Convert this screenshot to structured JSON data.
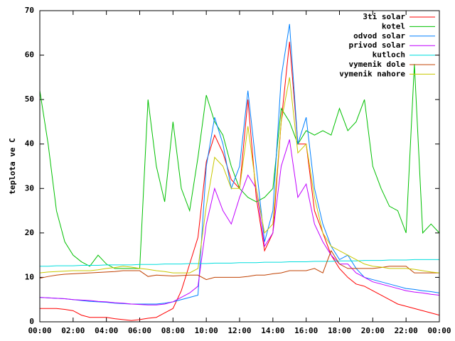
{
  "chart_data": {
    "type": "line",
    "ylabel": "teplota ve C",
    "x": [
      0,
      0.5,
      1,
      1.5,
      2,
      2.5,
      3,
      3.5,
      4,
      4.5,
      5,
      5.5,
      6,
      6.5,
      7,
      7.5,
      8,
      8.5,
      9,
      9.5,
      10,
      10.5,
      11,
      11.5,
      12,
      12.5,
      13,
      13.5,
      14,
      14.5,
      15,
      15.5,
      16,
      16.5,
      17,
      17.5,
      18,
      18.5,
      19,
      19.5,
      20,
      20.5,
      21,
      21.5,
      22,
      22.5,
      23,
      23.5,
      24
    ],
    "xlim": [
      0,
      24
    ],
    "xticks": [
      {
        "value": 0,
        "label": "00:00"
      },
      {
        "value": 2,
        "label": "02:00"
      },
      {
        "value": 4,
        "label": "04:00"
      },
      {
        "value": 6,
        "label": "06:00"
      },
      {
        "value": 8,
        "label": "08:00"
      },
      {
        "value": 10,
        "label": "10:00"
      },
      {
        "value": 12,
        "label": "12:00"
      },
      {
        "value": 14,
        "label": "14:00"
      },
      {
        "value": 16,
        "label": "16:00"
      },
      {
        "value": 18,
        "label": "18:00"
      },
      {
        "value": 20,
        "label": "20:00"
      },
      {
        "value": 22,
        "label": "22:00"
      },
      {
        "value": 24,
        "label": "00:00"
      }
    ],
    "ylim": [
      0,
      70
    ],
    "yticks": [
      0,
      10,
      20,
      30,
      40,
      50,
      60,
      70
    ],
    "legend": "upper right",
    "series": [
      {
        "name": "3ti solar",
        "color": "#ff0000",
        "values": [
          3,
          3,
          3,
          2.8,
          2.5,
          1.5,
          1,
          1,
          1,
          0.7,
          0.5,
          0.3,
          0.5,
          0.8,
          1,
          2,
          3,
          7,
          13,
          19,
          36,
          42,
          38,
          32,
          30,
          50,
          28,
          16,
          20,
          45,
          63,
          40,
          40,
          25,
          20,
          15,
          12,
          10,
          8.5,
          8,
          7,
          6,
          5,
          4,
          3.5,
          3,
          2.5,
          2,
          1.5
        ]
      },
      {
        "name": "kotel",
        "color": "#00c000",
        "values": [
          52,
          40,
          25,
          18,
          15,
          13.5,
          12.5,
          15,
          13,
          12,
          12,
          12,
          12,
          50,
          35,
          27,
          45,
          30,
          25,
          37,
          51,
          45,
          42,
          35,
          30,
          28,
          27,
          28,
          30,
          48,
          45,
          40,
          43,
          42,
          43,
          42,
          48,
          43,
          45,
          50,
          35,
          30,
          26,
          25,
          20,
          58,
          20,
          22,
          20
        ]
      },
      {
        "name": "odvod solar",
        "color": "#0080ff",
        "values": [
          5.5,
          5.4,
          5.3,
          5.2,
          5,
          4.8,
          4.6,
          4.5,
          4.4,
          4.2,
          4.1,
          4,
          4,
          4,
          4,
          4.2,
          4.5,
          5,
          5.5,
          6,
          35,
          46,
          40,
          30,
          35,
          52,
          35,
          18,
          25,
          55,
          67,
          40,
          46,
          30,
          22,
          17,
          14,
          15,
          12,
          10,
          9.5,
          9,
          8.5,
          8,
          7.5,
          7.3,
          7,
          6.8,
          6.5
        ]
      },
      {
        "name": "privod solar",
        "color": "#c000ff",
        "values": [
          5.5,
          5.4,
          5.3,
          5.2,
          5,
          4.9,
          4.8,
          4.6,
          4.5,
          4.3,
          4.2,
          4,
          3.9,
          3.8,
          3.8,
          4,
          4.5,
          5.5,
          6.5,
          8,
          22,
          30,
          25,
          22,
          28,
          33,
          30,
          17,
          20,
          35,
          41,
          28,
          31,
          22,
          18,
          15,
          13,
          13,
          11,
          10,
          9,
          8.5,
          8,
          7.5,
          7,
          6.7,
          6.5,
          6.2,
          6
        ]
      },
      {
        "name": "kutloch",
        "color": "#00dddd",
        "values": [
          12.5,
          12.5,
          12.6,
          12.6,
          12.6,
          12.7,
          12.7,
          12.7,
          12.8,
          12.8,
          12.8,
          12.8,
          12.9,
          12.9,
          12.9,
          13,
          13,
          13,
          13.1,
          13.1,
          13.1,
          13.2,
          13.2,
          13.2,
          13.3,
          13.3,
          13.3,
          13.4,
          13.4,
          13.4,
          13.5,
          13.5,
          13.5,
          13.6,
          13.6,
          13.6,
          13.7,
          13.7,
          13.7,
          13.8,
          13.8,
          13.8,
          13.9,
          13.9,
          13.9,
          14,
          14,
          14,
          14
        ]
      },
      {
        "name": "vymenik dole",
        "color": "#c04000",
        "values": [
          9.8,
          10.2,
          10.5,
          10.7,
          10.8,
          10.9,
          11,
          11.1,
          11.2,
          11.3,
          11.5,
          11.5,
          11.5,
          10.2,
          10.5,
          10.4,
          10.3,
          10.4,
          10.5,
          10.5,
          9.5,
          10,
          10,
          10,
          10,
          10.2,
          10.5,
          10.5,
          10.8,
          11,
          11.5,
          11.5,
          11.5,
          12,
          11,
          16,
          13,
          12,
          12,
          12,
          12,
          12.2,
          12.5,
          12.5,
          12.5,
          11,
          11,
          11,
          11
        ]
      },
      {
        "name": "vymenik nahore",
        "color": "#c8c800",
        "values": [
          11,
          11.2,
          11.3,
          11.4,
          11.5,
          11.5,
          11.5,
          11.7,
          12,
          12.2,
          12.5,
          12.3,
          12,
          11.8,
          11.5,
          11.3,
          11,
          11,
          11,
          12,
          26,
          37,
          35,
          30,
          30,
          44,
          30,
          20,
          22,
          45,
          55,
          38,
          40,
          28,
          20,
          17,
          16,
          15,
          14,
          13,
          12.5,
          12.3,
          12,
          12,
          12,
          11.8,
          11.5,
          11.2,
          11
        ]
      }
    ]
  }
}
